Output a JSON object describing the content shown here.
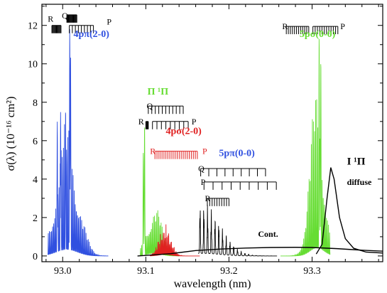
{
  "chart_data": {
    "type": "line",
    "xlabel": "wavelength (nm)",
    "ylabel": "σ(λ)  (10⁻¹⁶ cm²)",
    "xlim": [
      92.975,
      93.385
    ],
    "ylim": [
      -0.3,
      13.1
    ],
    "x_ticks": [
      93.0,
      93.1,
      93.2,
      93.3
    ],
    "x_tick_labels": [
      "93.0",
      "93.1",
      "93.2",
      "93.3"
    ],
    "y_ticks": [
      0,
      2,
      4,
      6,
      8,
      10,
      12
    ],
    "y_tick_labels": [
      "0",
      "2",
      "4",
      "6",
      "8",
      "10",
      "12"
    ],
    "colors": {
      "blue": "#3050e0",
      "green": "#66dd33",
      "red": "#e02020",
      "black": "#000000"
    },
    "series": [
      {
        "color": "blue",
        "band": {
          "x_start": 92.982,
          "x_end": 93.055,
          "amp_peak": 6.8,
          "center": 93.005,
          "width": 0.018,
          "line_spacing": 0.0013
        },
        "peaks": [
          {
            "x": 93.0085,
            "y": 11.9
          },
          {
            "x": 93.0095,
            "y": 10.4
          },
          {
            "x": 92.9975,
            "y": 7.5
          },
          {
            "x": 93.0035,
            "y": 7.7
          },
          {
            "x": 92.9935,
            "y": 7.0
          }
        ]
      },
      {
        "color": "green",
        "band": {
          "x_start": 93.093,
          "x_end": 93.14,
          "amp_peak": 2.8,
          "center": 93.11,
          "width": 0.012,
          "line_spacing": 0.0013
        },
        "peaks": [
          {
            "x": 93.0985,
            "y": 6.9
          },
          {
            "x": 93.097,
            "y": 5.4
          }
        ]
      },
      {
        "color": "red",
        "band": {
          "x_start": 93.105,
          "x_end": 93.165,
          "amp_peak": 1.6,
          "center": 93.123,
          "width": 0.01,
          "line_spacing": 0.0011
        },
        "peaks": []
      },
      {
        "color": "black",
        "band": {
          "x_start": 93.163,
          "x_end": 93.258,
          "amp_peak": 2.7,
          "center": 93.168,
          "width": 0.03,
          "line_spacing": 0.0045
        },
        "peaks": []
      },
      {
        "color": "green",
        "band": {
          "x_start": 93.262,
          "x_end": 93.322,
          "amp_peak": 8.5,
          "center": 93.306,
          "width": 0.012,
          "line_spacing": 0.0013
        },
        "peaks": [
          {
            "x": 93.3085,
            "y": 11.5
          },
          {
            "x": 93.3105,
            "y": 10.3
          }
        ]
      },
      {
        "color": "black",
        "shape": "diffuse",
        "points": [
          [
            93.305,
            0.1
          ],
          [
            93.312,
            0.6
          ],
          [
            93.318,
            3.0
          ],
          [
            93.3225,
            4.6
          ],
          [
            93.3265,
            4.0
          ],
          [
            93.333,
            2.0
          ],
          [
            93.34,
            0.9
          ],
          [
            93.35,
            0.4
          ],
          [
            93.365,
            0.2
          ],
          [
            93.385,
            0.15
          ]
        ]
      },
      {
        "color": "black",
        "shape": "continuum",
        "points": [
          [
            93.09,
            0.0
          ],
          [
            93.13,
            0.12
          ],
          [
            93.16,
            0.28
          ],
          [
            93.19,
            0.36
          ],
          [
            93.22,
            0.41
          ],
          [
            93.25,
            0.44
          ],
          [
            93.28,
            0.45
          ],
          [
            93.3,
            0.44
          ],
          [
            93.33,
            0.38
          ],
          [
            93.36,
            0.3
          ],
          [
            93.385,
            0.25
          ]
        ]
      }
    ],
    "annotations": [
      {
        "text": "4pπ(2-0)",
        "x": 93.013,
        "y": 11.4,
        "color": "blue",
        "size": 14
      },
      {
        "text": "Π ¹Π",
        "x": 93.102,
        "y": 8.4,
        "color": "green",
        "size": 14
      },
      {
        "text": "4pσ(2-0)",
        "x": 93.124,
        "y": 6.35,
        "color": "red",
        "size": 14
      },
      {
        "text": "5pπ(0-0)",
        "x": 93.188,
        "y": 5.2,
        "color": "blue",
        "size": 14
      },
      {
        "text": "5pσ(0-0)",
        "x": 93.285,
        "y": 11.4,
        "color": "green",
        "size": 14
      },
      {
        "text": "I ¹Π",
        "x": 93.342,
        "y": 4.75,
        "color": "black",
        "size": 15
      },
      {
        "text": "diffuse",
        "x": 93.342,
        "y": 3.7,
        "color": "black",
        "size": 12,
        "bold": false
      },
      {
        "text": "Cont.",
        "x": 93.235,
        "y": 1.0,
        "color": "black",
        "size": 12
      }
    ],
    "branch_labels": [
      {
        "text": "R",
        "x": 92.982,
        "y": 12.35,
        "color": "black"
      },
      {
        "text": "Q",
        "x": 92.999,
        "y": 12.5,
        "color": "black"
      },
      {
        "text": "P",
        "x": 93.053,
        "y": 12.2,
        "color": "black"
      },
      {
        "text": "Q",
        "x": 93.101,
        "y": 7.8,
        "color": "black"
      },
      {
        "text": "R",
        "x": 93.091,
        "y": 7.0,
        "color": "black"
      },
      {
        "text": "P",
        "x": 93.155,
        "y": 7.0,
        "color": "black"
      },
      {
        "text": "R",
        "x": 93.105,
        "y": 5.45,
        "color": "red"
      },
      {
        "text": "P",
        "x": 93.168,
        "y": 5.45,
        "color": "red"
      },
      {
        "text": "Q",
        "x": 93.163,
        "y": 4.55,
        "color": "black"
      },
      {
        "text": "P",
        "x": 93.166,
        "y": 3.85,
        "color": "black"
      },
      {
        "text": "R",
        "x": 93.171,
        "y": 3.0,
        "color": "black"
      },
      {
        "text": "R",
        "x": 93.264,
        "y": 11.95,
        "color": "black"
      },
      {
        "text": "P",
        "x": 93.334,
        "y": 11.95,
        "color": "black"
      }
    ],
    "line_ladders": [
      {
        "y": 12.0,
        "x_start": 92.987,
        "x_end": 92.998,
        "n": 13,
        "color": "black"
      },
      {
        "y": 12.55,
        "x_start": 93.005,
        "x_end": 93.017,
        "n": 16,
        "color": "black"
      },
      {
        "y": 12.0,
        "x_start": 93.008,
        "x_end": 93.037,
        "n": 9,
        "color": "black"
      },
      {
        "y": 7.8,
        "x_start": 93.103,
        "x_end": 93.145,
        "n": 11,
        "color": "black"
      },
      {
        "y": 7.0,
        "x_start": 93.1,
        "x_end": 93.103,
        "n": 5,
        "color": "black"
      },
      {
        "y": 7.0,
        "x_start": 93.108,
        "x_end": 93.151,
        "n": 9,
        "color": "black"
      },
      {
        "y": 5.45,
        "x_start": 93.111,
        "x_end": 93.162,
        "n": 22,
        "color": "red"
      },
      {
        "y": 4.55,
        "x_start": 93.166,
        "x_end": 93.244,
        "n": 9,
        "color": "black"
      },
      {
        "y": 3.85,
        "x_start": 93.17,
        "x_end": 93.257,
        "n": 9,
        "color": "black"
      },
      {
        "y": 3.0,
        "x_start": 93.174,
        "x_end": 93.2,
        "n": 10,
        "color": "black"
      },
      {
        "y": 11.95,
        "x_start": 93.269,
        "x_end": 93.296,
        "n": 12,
        "color": "black"
      },
      {
        "y": 11.95,
        "x_start": 93.301,
        "x_end": 93.331,
        "n": 12,
        "color": "black"
      }
    ]
  }
}
